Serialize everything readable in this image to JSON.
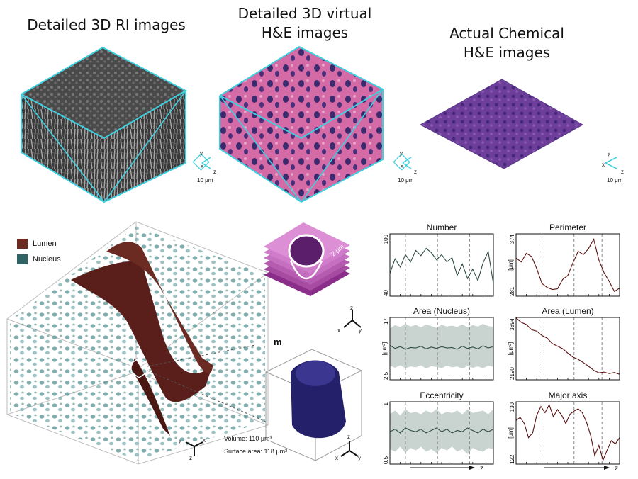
{
  "titles": {
    "ri": "Detailed 3D RI images",
    "virtual_line1": "Detailed 3D virtual",
    "virtual_line2": "H&E images",
    "chemical_line1": "Actual Chemical",
    "chemical_line2": "H&E images"
  },
  "axes_glyph": {
    "x": "x",
    "y": "y",
    "z": "z",
    "scale": "10 μm"
  },
  "volume_panel": {
    "legend": [
      {
        "label": "Lumen",
        "color": "#6b2a22"
      },
      {
        "label": "Nucleus",
        "color": "#2f6364"
      }
    ],
    "scale_label": "2 μm",
    "panel_letter": "m",
    "volume_text": "Volume: 110 μm³",
    "surface_text": "Surface area: 118 μm²"
  },
  "colors": {
    "cyan": "#3fd0e0",
    "lumen": "#5a1e1b",
    "nucleus": "#4a8a8a",
    "line": "#2f4d45",
    "band": "#c9d3cf",
    "lumen_line": "#5a1010"
  },
  "chart_data": [
    {
      "type": "line",
      "title": "Number",
      "ylabel": "",
      "yticks": [
        "100",
        "40"
      ],
      "ylim": [
        40,
        100
      ],
      "dashed_x": [
        0.15,
        0.46,
        0.77
      ],
      "x": [
        0,
        0.05,
        0.1,
        0.15,
        0.2,
        0.25,
        0.3,
        0.35,
        0.4,
        0.45,
        0.5,
        0.55,
        0.6,
        0.65,
        0.7,
        0.75,
        0.8,
        0.85,
        0.9,
        0.95,
        1.0
      ],
      "values": [
        62,
        76,
        68,
        80,
        73,
        84,
        79,
        86,
        82,
        75,
        80,
        73,
        77,
        60,
        71,
        57,
        66,
        55,
        72,
        83,
        52
      ]
    },
    {
      "type": "line",
      "title": "Perimeter",
      "ylabel": "[μm]",
      "yticks": [
        "374",
        "281"
      ],
      "ylim": [
        281,
        374
      ],
      "dashed_x": [
        0.25,
        0.56,
        0.83
      ],
      "x": [
        0,
        0.05,
        0.1,
        0.15,
        0.2,
        0.25,
        0.3,
        0.35,
        0.4,
        0.45,
        0.5,
        0.55,
        0.6,
        0.65,
        0.7,
        0.75,
        0.8,
        0.85,
        0.9,
        0.95,
        1.0
      ],
      "values": [
        338,
        332,
        345,
        340,
        322,
        300,
        294,
        291,
        292,
        306,
        312,
        331,
        348,
        343,
        352,
        366,
        335,
        316,
        303,
        288,
        293
      ]
    },
    {
      "type": "area",
      "title": "Area (Nucleus)",
      "ylabel": "[μm²]",
      "yticks": [
        "17",
        "2.5"
      ],
      "ylim": [
        2.5,
        17
      ],
      "dashed_x": [
        0.15,
        0.46,
        0.77
      ],
      "x": [
        0,
        0.05,
        0.1,
        0.15,
        0.2,
        0.25,
        0.3,
        0.35,
        0.4,
        0.45,
        0.5,
        0.55,
        0.6,
        0.65,
        0.7,
        0.75,
        0.8,
        0.85,
        0.9,
        0.95,
        1.0
      ],
      "values": [
        10.5,
        9.8,
        10.2,
        9.6,
        10.0,
        9.9,
        10.3,
        9.7,
        10.1,
        9.8,
        10.2,
        9.9,
        10.0,
        9.6,
        10.3,
        9.8,
        10.1,
        9.7,
        10.4,
        9.9,
        10.2
      ],
      "upper": [
        14.5,
        15.2,
        14.8,
        15.5,
        14.9,
        15.3,
        14.7,
        15.4,
        15.0,
        14.6,
        15.3,
        14.9,
        15.1,
        14.8,
        15.4,
        14.7,
        15.2,
        14.9,
        15.5,
        15.0,
        14.8
      ],
      "lower": [
        5.8,
        5.3,
        5.9,
        5.2,
        5.6,
        5.4,
        5.9,
        5.1,
        5.7,
        5.5,
        5.2,
        5.8,
        5.4,
        5.6,
        5.1,
        5.7,
        5.3,
        5.6,
        5.2,
        5.8,
        5.5
      ]
    },
    {
      "type": "line",
      "title": "Area (Lumen)",
      "ylabel": "[μm²]",
      "yticks": [
        "3894",
        "2190"
      ],
      "ylim": [
        2190,
        3894
      ],
      "dashed_x": [
        0.25,
        0.56,
        0.83
      ],
      "x": [
        0,
        0.05,
        0.1,
        0.15,
        0.2,
        0.25,
        0.3,
        0.35,
        0.4,
        0.45,
        0.5,
        0.55,
        0.6,
        0.65,
        0.7,
        0.75,
        0.8,
        0.85,
        0.9,
        0.95,
        1.0
      ],
      "values": [
        3880,
        3760,
        3700,
        3560,
        3520,
        3400,
        3330,
        3180,
        3110,
        3040,
        2920,
        2810,
        2750,
        2660,
        2560,
        2450,
        2380,
        2400,
        2360,
        2390,
        2340
      ]
    },
    {
      "type": "area",
      "title": "Eccentricity",
      "ylabel": "",
      "yticks": [
        "1",
        "0.5"
      ],
      "ylim": [
        0.5,
        1
      ],
      "dashed_x": [
        0.15,
        0.46,
        0.77
      ],
      "x": [
        0,
        0.05,
        0.1,
        0.15,
        0.2,
        0.25,
        0.3,
        0.35,
        0.4,
        0.45,
        0.5,
        0.55,
        0.6,
        0.65,
        0.7,
        0.75,
        0.8,
        0.85,
        0.9,
        0.95,
        1.0
      ],
      "values": [
        0.76,
        0.78,
        0.75,
        0.79,
        0.77,
        0.76,
        0.78,
        0.75,
        0.77,
        0.79,
        0.76,
        0.78,
        0.75,
        0.77,
        0.76,
        0.79,
        0.77,
        0.75,
        0.78,
        0.76,
        0.78
      ],
      "upper": [
        0.9,
        0.93,
        0.89,
        0.94,
        0.91,
        0.92,
        0.9,
        0.93,
        0.91,
        0.94,
        0.9,
        0.92,
        0.91,
        0.93,
        0.9,
        0.94,
        0.91,
        0.92,
        0.93,
        0.9,
        0.94
      ],
      "lower": [
        0.62,
        0.6,
        0.64,
        0.59,
        0.63,
        0.61,
        0.64,
        0.6,
        0.62,
        0.59,
        0.63,
        0.61,
        0.64,
        0.6,
        0.62,
        0.58,
        0.63,
        0.61,
        0.6,
        0.63,
        0.62
      ]
    },
    {
      "type": "line",
      "title": "Major axis",
      "ylabel": "[μm]",
      "yticks": [
        "130",
        "122"
      ],
      "ylim": [
        122,
        130
      ],
      "dashed_x": [
        0.25,
        0.56,
        0.83
      ],
      "x": [
        0,
        0.04,
        0.08,
        0.12,
        0.16,
        0.2,
        0.24,
        0.28,
        0.32,
        0.36,
        0.4,
        0.44,
        0.48,
        0.52,
        0.56,
        0.6,
        0.64,
        0.68,
        0.72,
        0.76,
        0.8,
        0.84,
        0.88,
        0.92,
        0.96,
        1.0
      ],
      "values": [
        127.6,
        128.0,
        127.2,
        125.4,
        126.0,
        128.3,
        129.4,
        128.6,
        129.6,
        128.1,
        129.0,
        128.3,
        127.2,
        128.4,
        128.8,
        129.1,
        128.6,
        127.4,
        125.7,
        123.1,
        124.4,
        122.5,
        123.8,
        125.0,
        124.6,
        125.4
      ]
    }
  ],
  "z_axis_label": "z"
}
